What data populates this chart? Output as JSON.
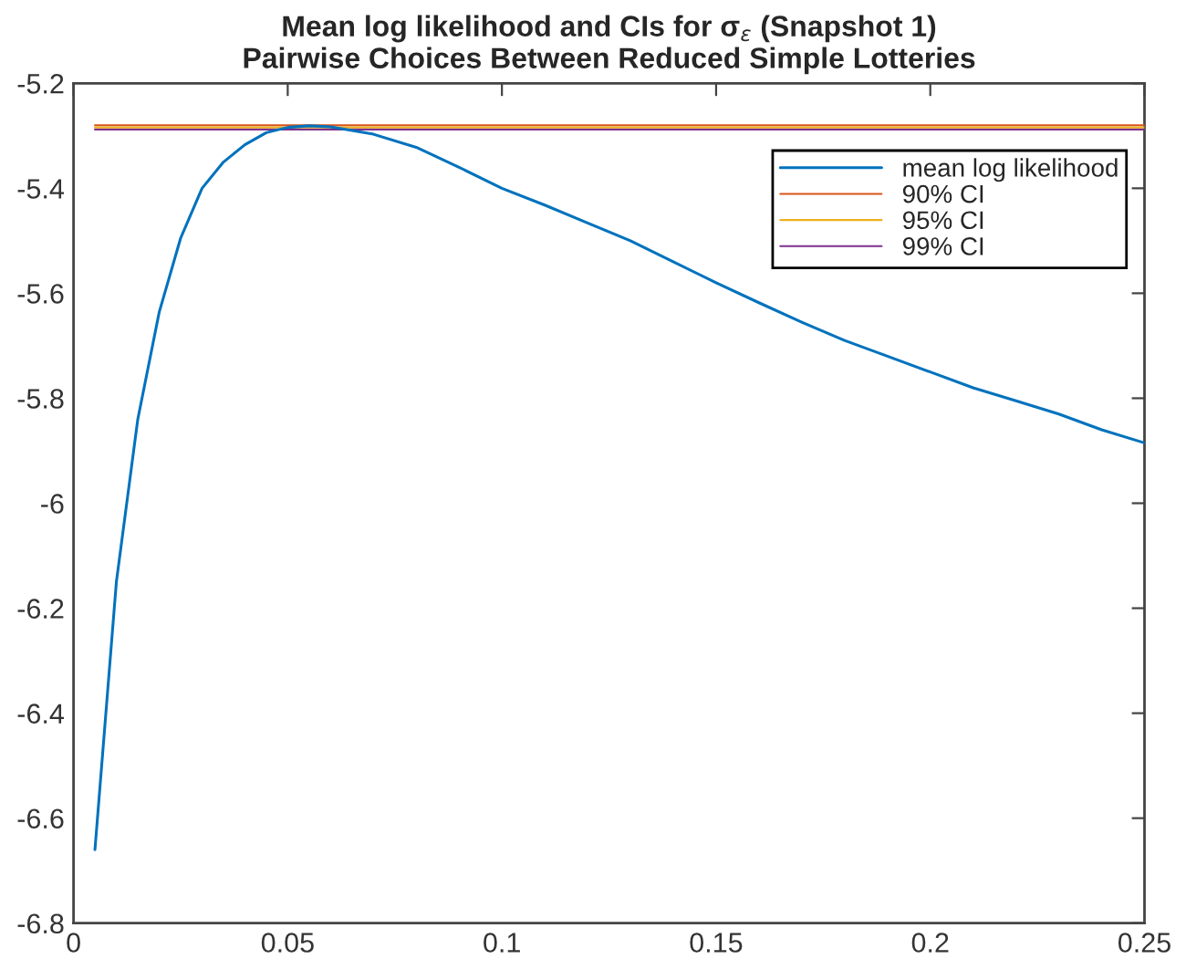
{
  "chart_data": {
    "type": "line",
    "title": "Mean log likelihood and CIs for σ$_{ε}$ (Snapshot 1)\nPairwise Choices Between Reduced Simple Lotteries",
    "x": [
      0.005,
      0.01,
      0.015,
      0.02,
      0.025,
      0.03,
      0.035,
      0.04,
      0.045,
      0.05,
      0.055,
      0.06,
      0.07,
      0.08,
      0.09,
      0.1,
      0.11,
      0.12,
      0.13,
      0.14,
      0.15,
      0.16,
      0.17,
      0.18,
      0.19,
      0.2,
      0.21,
      0.22,
      0.23,
      0.24,
      0.25
    ],
    "series": [
      {
        "name": "mean log likelihood",
        "color": "#0072bd",
        "values": [
          -6.66,
          -6.15,
          -5.84,
          -5.636,
          -5.495,
          -5.4,
          -5.35,
          -5.317,
          -5.294,
          -5.284,
          -5.281,
          -5.283,
          -5.297,
          -5.322,
          -5.36,
          -5.4,
          -5.432,
          -5.466,
          -5.5,
          -5.54,
          -5.58,
          -5.618,
          -5.655,
          -5.69,
          -5.72,
          -5.75,
          -5.78,
          -5.805,
          -5.83,
          -5.86,
          -5.885
        ]
      },
      {
        "name": "90% CI",
        "color": "#d95319",
        "values": [
          -5.28,
          -5.28,
          -5.28,
          -5.28,
          -5.28,
          -5.28,
          -5.28,
          -5.28,
          -5.28,
          -5.28,
          -5.28,
          -5.28,
          -5.28,
          -5.28,
          -5.28,
          -5.28,
          -5.28,
          -5.28,
          -5.28,
          -5.28,
          -5.28,
          -5.28,
          -5.28,
          -5.28,
          -5.28,
          -5.28,
          -5.28,
          -5.28,
          -5.28,
          -5.28,
          -5.28
        ]
      },
      {
        "name": "95% CI",
        "color": "#edb120",
        "values": [
          -5.284,
          -5.284,
          -5.284,
          -5.284,
          -5.284,
          -5.284,
          -5.284,
          -5.284,
          -5.284,
          -5.284,
          -5.284,
          -5.284,
          -5.284,
          -5.284,
          -5.284,
          -5.284,
          -5.284,
          -5.284,
          -5.284,
          -5.284,
          -5.284,
          -5.284,
          -5.284,
          -5.284,
          -5.284,
          -5.284,
          -5.284,
          -5.284,
          -5.284,
          -5.284,
          -5.284
        ]
      },
      {
        "name": "99% CI",
        "color": "#7e2f8e",
        "values": [
          -5.288,
          -5.288,
          -5.288,
          -5.288,
          -5.288,
          -5.288,
          -5.288,
          -5.288,
          -5.288,
          -5.288,
          -5.288,
          -5.288,
          -5.288,
          -5.288,
          -5.288,
          -5.288,
          -5.288,
          -5.288,
          -5.288,
          -5.288,
          -5.288,
          -5.288,
          -5.288,
          -5.288,
          -5.288,
          -5.288,
          -5.288,
          -5.288,
          -5.288,
          -5.288,
          -5.288
        ]
      }
    ],
    "xlim": [
      0,
      0.25
    ],
    "xticks": [
      0,
      0.05,
      0.1,
      0.15,
      0.2,
      0.25
    ],
    "ylim": [
      -6.8,
      -5.2
    ],
    "yticks": [
      -6.8,
      -6.6,
      -6.4,
      -6.2,
      -6,
      -5.8,
      -5.6,
      -5.4,
      -5.2
    ],
    "grid": false,
    "legend": "top right",
    "marker": "none",
    "line_style": "solid"
  }
}
